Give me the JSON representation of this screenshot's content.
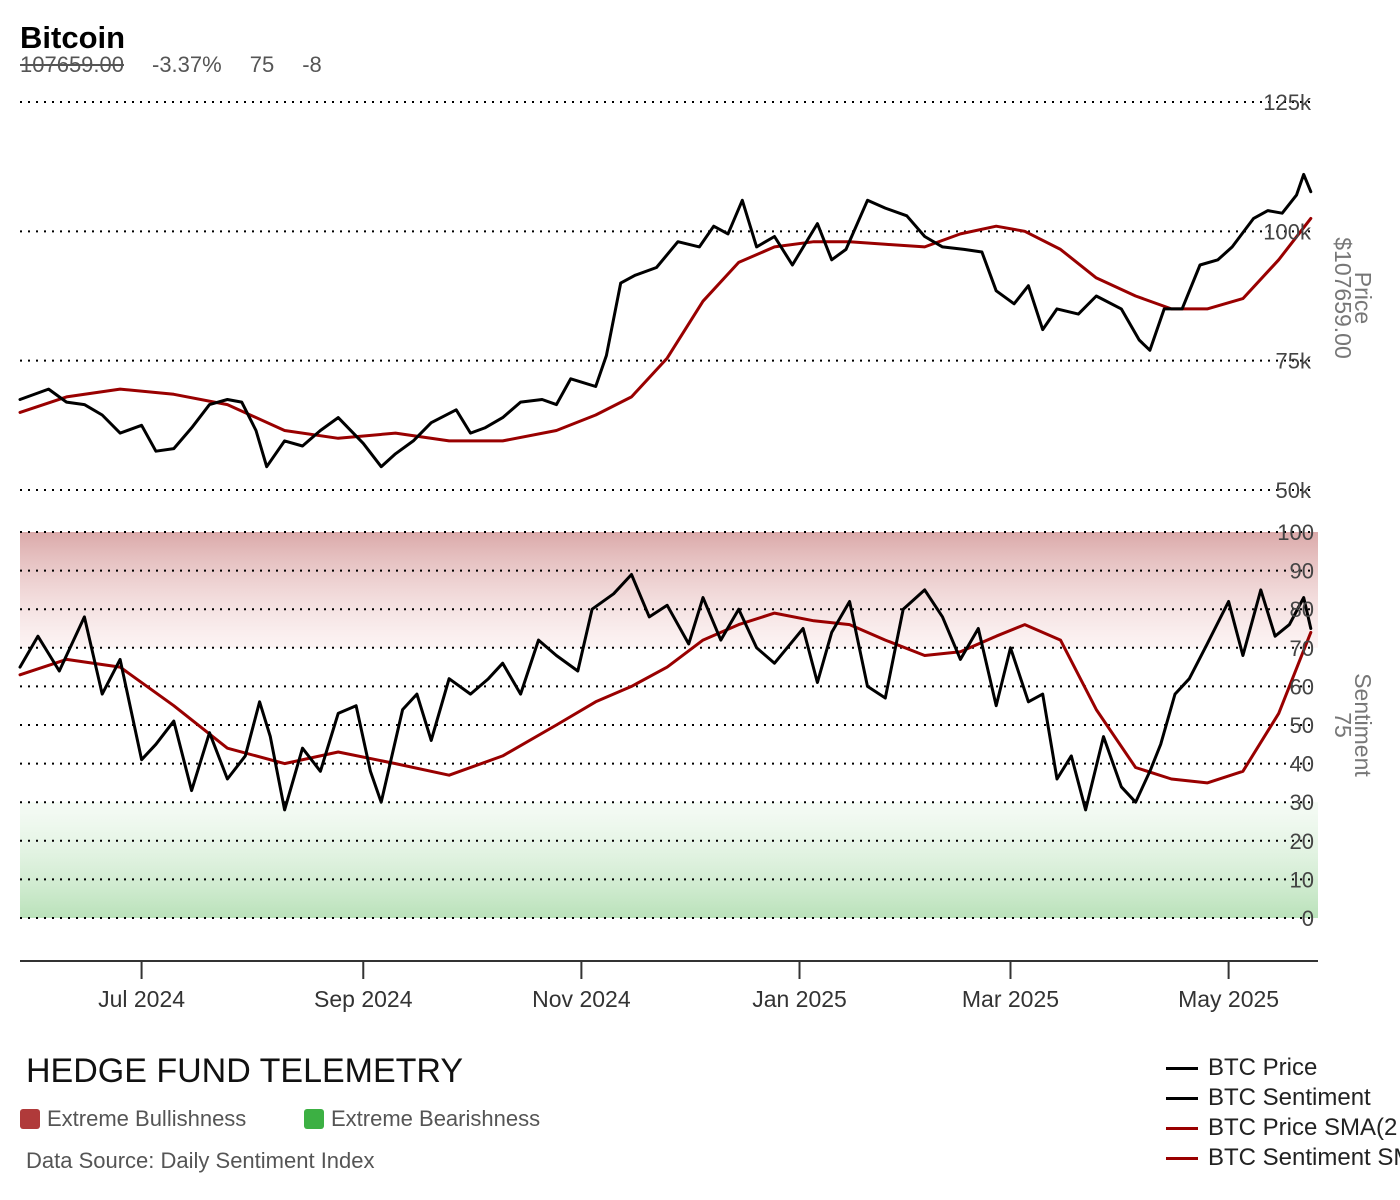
{
  "header": {
    "title": "Bitcoin",
    "price": "107659.00",
    "change": "-3.37%",
    "sentiment": "75",
    "sentiment_change": "-8"
  },
  "footer": {
    "brand": "HEDGE FUND TELEMETRY",
    "legend_bull": "Extreme Bullishness",
    "legend_bear": "Extreme Bearishness",
    "source": "Data Source: Daily Sentiment Index"
  },
  "colors": {
    "price_line": "#000000",
    "sma_line": "#990000",
    "bull_band": "#b03a3a",
    "bear_band": "#3cb043"
  },
  "chart_data": [
    {
      "type": "line",
      "ylabel": "Price",
      "ylabel_value": "$107659.00",
      "ylim": [
        50000,
        125000
      ],
      "yticks": [
        50000,
        75000,
        100000,
        125000
      ],
      "ytick_labels": [
        "50k",
        "75k",
        "100k",
        "125k"
      ],
      "xlim": [
        "2024-05-28",
        "2025-05-26"
      ],
      "xticks": [
        "2024-07-01",
        "2024-09-01",
        "2024-11-01",
        "2025-01-01",
        "2025-03-01",
        "2025-05-01"
      ],
      "xtick_labels": [
        "Jul 2024",
        "Sep 2024",
        "Nov 2024",
        "Jan 2025",
        "Mar 2025",
        "May 2025"
      ],
      "grid": "horizontal dotted",
      "series": [
        {
          "name": "BTC Price",
          "x": [
            "2024-05-28",
            "2024-06-05",
            "2024-06-10",
            "2024-06-15",
            "2024-06-20",
            "2024-06-25",
            "2024-07-01",
            "2024-07-05",
            "2024-07-10",
            "2024-07-15",
            "2024-07-20",
            "2024-07-25",
            "2024-07-29",
            "2024-08-02",
            "2024-08-05",
            "2024-08-10",
            "2024-08-15",
            "2024-08-20",
            "2024-08-25",
            "2024-09-01",
            "2024-09-06",
            "2024-09-10",
            "2024-09-15",
            "2024-09-20",
            "2024-09-27",
            "2024-10-01",
            "2024-10-05",
            "2024-10-10",
            "2024-10-15",
            "2024-10-21",
            "2024-10-25",
            "2024-10-29",
            "2024-11-05",
            "2024-11-08",
            "2024-11-12",
            "2024-11-16",
            "2024-11-22",
            "2024-11-28",
            "2024-12-04",
            "2024-12-08",
            "2024-12-12",
            "2024-12-16",
            "2024-12-20",
            "2024-12-25",
            "2024-12-30",
            "2025-01-06",
            "2025-01-10",
            "2025-01-14",
            "2025-01-20",
            "2025-01-25",
            "2025-01-31",
            "2025-02-05",
            "2025-02-10",
            "2025-02-16",
            "2025-02-21",
            "2025-02-25",
            "2025-03-02",
            "2025-03-06",
            "2025-03-10",
            "2025-03-14",
            "2025-03-20",
            "2025-03-25",
            "2025-04-01",
            "2025-04-06",
            "2025-04-09",
            "2025-04-13",
            "2025-04-18",
            "2025-04-23",
            "2025-04-28",
            "2025-05-02",
            "2025-05-08",
            "2025-05-12",
            "2025-05-16",
            "2025-05-20",
            "2025-05-22",
            "2025-05-24"
          ],
          "y": [
            67500,
            69500,
            67000,
            66500,
            64500,
            61000,
            62500,
            57500,
            58000,
            62000,
            66500,
            67500,
            67000,
            61500,
            54500,
            59500,
            58500,
            61500,
            64000,
            59000,
            54500,
            57000,
            59500,
            63000,
            65500,
            61000,
            62000,
            64000,
            67000,
            67500,
            66500,
            71500,
            70000,
            76000,
            90000,
            91500,
            93000,
            98000,
            97000,
            101000,
            99500,
            106000,
            97000,
            99000,
            93500,
            101500,
            94500,
            96500,
            106000,
            104500,
            103000,
            99000,
            97000,
            96500,
            96000,
            88500,
            86000,
            89500,
            81000,
            85000,
            84000,
            87500,
            85000,
            79000,
            77000,
            85000,
            85000,
            93500,
            94500,
            97000,
            102500,
            104000,
            103500,
            107000,
            111000,
            107659
          ]
        },
        {
          "name": "BTC Price SMA(2",
          "x": [
            "2024-05-28",
            "2024-06-10",
            "2024-06-25",
            "2024-07-10",
            "2024-07-25",
            "2024-08-10",
            "2024-08-25",
            "2024-09-10",
            "2024-09-25",
            "2024-10-10",
            "2024-10-25",
            "2024-11-05",
            "2024-11-15",
            "2024-11-25",
            "2024-12-05",
            "2024-12-15",
            "2024-12-25",
            "2025-01-05",
            "2025-01-15",
            "2025-01-25",
            "2025-02-05",
            "2025-02-15",
            "2025-02-25",
            "2025-03-05",
            "2025-03-15",
            "2025-03-25",
            "2025-04-05",
            "2025-04-15",
            "2025-04-25",
            "2025-05-05",
            "2025-05-15",
            "2025-05-24"
          ],
          "y": [
            65000,
            68000,
            69500,
            68500,
            66500,
            61500,
            60000,
            61000,
            59500,
            59500,
            61500,
            64500,
            68000,
            75500,
            86500,
            94000,
            97000,
            98000,
            98000,
            97500,
            97000,
            99500,
            101000,
            100000,
            96500,
            91000,
            87500,
            85000,
            85000,
            87000,
            94500,
            102500
          ]
        }
      ]
    },
    {
      "type": "line",
      "ylabel": "Sentiment",
      "ylabel_value": "75",
      "ylim": [
        0,
        100
      ],
      "yticks": [
        0,
        10,
        20,
        30,
        40,
        50,
        60,
        70,
        80,
        90,
        100
      ],
      "bands": [
        {
          "name": "Extreme Bullishness",
          "from": 70,
          "to": 100
        },
        {
          "name": "Extreme Bearishness",
          "from": 0,
          "to": 30
        }
      ],
      "series": [
        {
          "name": "BTC Sentiment",
          "x": [
            "2024-05-28",
            "2024-06-02",
            "2024-06-08",
            "2024-06-15",
            "2024-06-20",
            "2024-06-25",
            "2024-07-01",
            "2024-07-05",
            "2024-07-10",
            "2024-07-15",
            "2024-07-20",
            "2024-07-25",
            "2024-07-30",
            "2024-08-03",
            "2024-08-06",
            "2024-08-10",
            "2024-08-15",
            "2024-08-20",
            "2024-08-25",
            "2024-08-30",
            "2024-09-03",
            "2024-09-06",
            "2024-09-12",
            "2024-09-16",
            "2024-09-20",
            "2024-09-25",
            "2024-10-01",
            "2024-10-06",
            "2024-10-10",
            "2024-10-15",
            "2024-10-20",
            "2024-10-25",
            "2024-10-31",
            "2024-11-04",
            "2024-11-10",
            "2024-11-15",
            "2024-11-20",
            "2024-11-25",
            "2024-12-01",
            "2024-12-05",
            "2024-12-10",
            "2024-12-15",
            "2024-12-20",
            "2024-12-25",
            "2025-01-02",
            "2025-01-06",
            "2025-01-10",
            "2025-01-15",
            "2025-01-20",
            "2025-01-25",
            "2025-01-30",
            "2025-02-05",
            "2025-02-10",
            "2025-02-15",
            "2025-02-20",
            "2025-02-25",
            "2025-03-01",
            "2025-03-06",
            "2025-03-10",
            "2025-03-14",
            "2025-03-18",
            "2025-03-22",
            "2025-03-27",
            "2025-04-01",
            "2025-04-05",
            "2025-04-09",
            "2025-04-12",
            "2025-04-16",
            "2025-04-20",
            "2025-04-25",
            "2025-05-01",
            "2025-05-05",
            "2025-05-10",
            "2025-05-14",
            "2025-05-18",
            "2025-05-22",
            "2025-05-24"
          ],
          "y": [
            65,
            73,
            64,
            78,
            58,
            67,
            41,
            45,
            51,
            33,
            48,
            36,
            42,
            56,
            47,
            28,
            44,
            38,
            53,
            55,
            38,
            30,
            54,
            58,
            46,
            62,
            58,
            62,
            66,
            58,
            72,
            68,
            64,
            80,
            84,
            89,
            78,
            81,
            71,
            83,
            72,
            80,
            70,
            66,
            75,
            61,
            74,
            82,
            60,
            57,
            80,
            85,
            78,
            67,
            75,
            55,
            70,
            56,
            58,
            36,
            42,
            28,
            47,
            34,
            30,
            38,
            45,
            58,
            62,
            71,
            82,
            68,
            85,
            73,
            76,
            83,
            75
          ]
        },
        {
          "name": "BTC Sentiment SMA",
          "x": [
            "2024-05-28",
            "2024-06-10",
            "2024-06-25",
            "2024-07-10",
            "2024-07-25",
            "2024-08-10",
            "2024-08-25",
            "2024-09-10",
            "2024-09-25",
            "2024-10-10",
            "2024-10-25",
            "2024-11-05",
            "2024-11-15",
            "2024-11-25",
            "2024-12-05",
            "2024-12-15",
            "2024-12-25",
            "2025-01-05",
            "2025-01-15",
            "2025-01-25",
            "2025-02-05",
            "2025-02-15",
            "2025-02-25",
            "2025-03-05",
            "2025-03-15",
            "2025-03-25",
            "2025-04-05",
            "2025-04-15",
            "2025-04-25",
            "2025-05-05",
            "2025-05-15",
            "2025-05-24"
          ],
          "y": [
            63,
            67,
            65,
            55,
            44,
            40,
            43,
            40,
            37,
            42,
            50,
            56,
            60,
            65,
            72,
            76,
            79,
            77,
            76,
            72,
            68,
            69,
            73,
            76,
            72,
            54,
            39,
            36,
            35,
            38,
            53,
            74
          ]
        }
      ]
    }
  ]
}
